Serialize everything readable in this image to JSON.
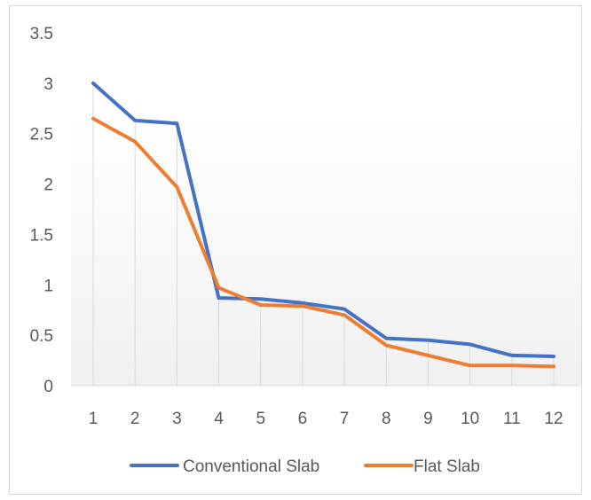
{
  "chart_data": {
    "type": "line",
    "title": "",
    "xlabel": "",
    "ylabel": "",
    "categories": [
      "1",
      "2",
      "3",
      "4",
      "5",
      "6",
      "7",
      "8",
      "9",
      "10",
      "11",
      "12"
    ],
    "ylim": [
      0,
      3.5
    ],
    "yticks": [
      "0",
      "0.5",
      "1",
      "1.5",
      "2",
      "2.5",
      "3",
      "3.5"
    ],
    "grid": "vertical drop lines at each category",
    "legend_position": "bottom",
    "series": [
      {
        "name": "Conventional Slab",
        "color": "#4472C4",
        "values": [
          3.0,
          2.63,
          2.6,
          0.87,
          0.86,
          0.82,
          0.76,
          0.47,
          0.45,
          0.41,
          0.3,
          0.29
        ]
      },
      {
        "name": "Flat Slab",
        "color": "#ED7D31",
        "values": [
          2.65,
          2.42,
          1.97,
          0.97,
          0.8,
          0.79,
          0.7,
          0.4,
          0.3,
          0.2,
          0.2,
          0.19
        ]
      }
    ]
  }
}
